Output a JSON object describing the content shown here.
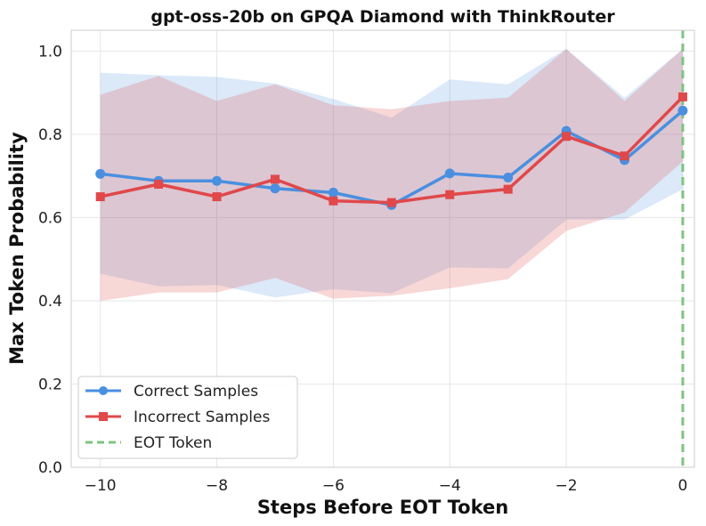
{
  "chart_data": {
    "type": "line",
    "title": "gpt-oss-20b on GPQA Diamond with ThinkRouter",
    "xlabel": "Steps Before EOT Token",
    "ylabel": "Max Token Probability",
    "xlim": [
      -10.5,
      0.2
    ],
    "ylim": [
      0.0,
      1.05
    ],
    "x_ticks": [
      -10,
      -8,
      -6,
      -4,
      -2,
      0
    ],
    "x_tick_labels": [
      "−10",
      "−8",
      "−6",
      "−4",
      "−2",
      "0"
    ],
    "y_ticks": [
      0.0,
      0.2,
      0.4,
      0.6,
      0.8,
      1.0
    ],
    "y_tick_labels": [
      "0.0",
      "0.2",
      "0.4",
      "0.6",
      "0.8",
      "1.0"
    ],
    "grid": true,
    "legend_position": "lower-left",
    "x": [
      -10,
      -9,
      -8,
      -7,
      -6,
      -5,
      -4,
      -3,
      -2,
      -1,
      0
    ],
    "series": [
      {
        "name": "Correct Samples",
        "color": "#4a8fe0",
        "marker": "circle",
        "values": [
          0.705,
          0.688,
          0.688,
          0.67,
          0.66,
          0.63,
          0.706,
          0.696,
          0.808,
          0.738,
          0.857
        ],
        "band_upper": [
          0.948,
          0.942,
          0.938,
          0.922,
          0.885,
          0.84,
          0.932,
          0.92,
          1.005,
          0.888,
          1.005
        ],
        "band_lower": [
          0.465,
          0.435,
          0.438,
          0.408,
          0.428,
          0.418,
          0.48,
          0.478,
          0.595,
          0.595,
          0.668
        ]
      },
      {
        "name": "Incorrect Samples",
        "color": "#e0484a",
        "marker": "square",
        "values": [
          0.65,
          0.68,
          0.65,
          0.692,
          0.64,
          0.636,
          0.655,
          0.668,
          0.795,
          0.748,
          0.89
        ],
        "band_upper": [
          0.895,
          0.94,
          0.88,
          0.92,
          0.87,
          0.86,
          0.88,
          0.888,
          1.005,
          0.88,
          1.005
        ],
        "band_lower": [
          0.4,
          0.42,
          0.42,
          0.455,
          0.405,
          0.412,
          0.43,
          0.452,
          0.568,
          0.612,
          0.735
        ]
      }
    ],
    "vline": {
      "name": "EOT Token",
      "x": 0,
      "color": "#7cc47f",
      "style": "dashed"
    },
    "legend": [
      "Correct Samples",
      "Incorrect Samples",
      "EOT Token"
    ]
  }
}
